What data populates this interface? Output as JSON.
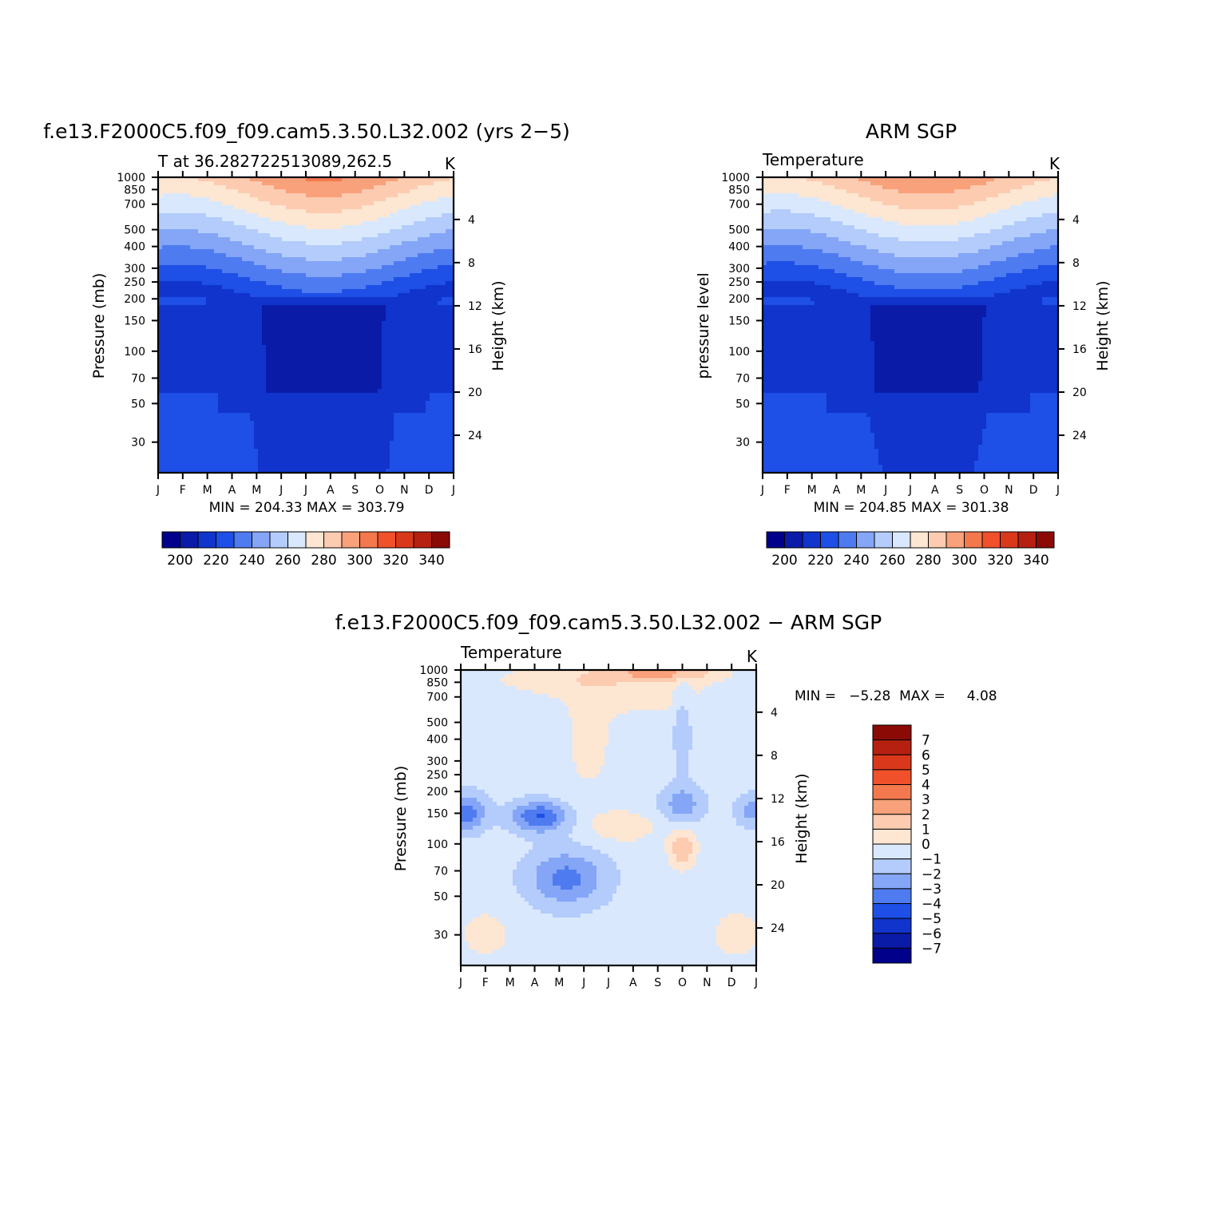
{
  "chart_data": [
    {
      "type": "contour",
      "title": "f.e13.F2000C5.f09_f09.cam5.3.50.L32.002 (yrs 2−5)",
      "subtitle_left": "T at 36.282722513089,262.5",
      "subtitle_right": "K",
      "ylabel": "Pressure (mb)",
      "ylabel_right": "Height (km)",
      "minmax_text": "MIN = 204.33 MAX = 303.79",
      "min": 204.33,
      "max": 303.79,
      "months": [
        "J",
        "F",
        "M",
        "A",
        "M",
        "J",
        "J",
        "A",
        "S",
        "O",
        "N",
        "D",
        "J"
      ],
      "pressure_ticks": [
        "30",
        "50",
        "70",
        "100",
        "150",
        "200",
        "250",
        "300",
        "400",
        "500",
        "700",
        "850",
        "1000"
      ],
      "pressure_values": [
        30,
        50,
        70,
        100,
        150,
        200,
        250,
        300,
        400,
        500,
        700,
        850,
        1000
      ],
      "height_ticks": [
        "24",
        "20",
        "16",
        "12",
        "8",
        "4"
      ],
      "height_values": [
        24,
        20,
        16,
        12,
        8,
        4
      ],
      "levels": [
        200,
        210,
        220,
        230,
        240,
        250,
        260,
        270,
        280,
        290,
        300,
        310,
        320,
        330,
        340
      ],
      "colorbar_labels": [
        "200",
        "220",
        "240",
        "260",
        "280",
        "300",
        "320",
        "340"
      ],
      "ylim": [
        1000,
        20
      ]
    },
    {
      "type": "contour",
      "title": "ARM SGP",
      "subtitle_left": "Temperature",
      "subtitle_right": "K",
      "ylabel": "pressure level",
      "ylabel_right": "Height (km)",
      "minmax_text": "MIN = 204.85 MAX = 301.38",
      "min": 204.85,
      "max": 301.38,
      "months": [
        "J",
        "F",
        "M",
        "A",
        "M",
        "J",
        "J",
        "A",
        "S",
        "O",
        "N",
        "D",
        "J"
      ],
      "pressure_ticks": [
        "30",
        "50",
        "70",
        "100",
        "150",
        "200",
        "250",
        "300",
        "400",
        "500",
        "700",
        "850",
        "1000"
      ],
      "pressure_values": [
        30,
        50,
        70,
        100,
        150,
        200,
        250,
        300,
        400,
        500,
        700,
        850,
        1000
      ],
      "height_ticks": [
        "24",
        "20",
        "16",
        "12",
        "8",
        "4"
      ],
      "height_values": [
        24,
        20,
        16,
        12,
        8,
        4
      ],
      "levels": [
        200,
        210,
        220,
        230,
        240,
        250,
        260,
        270,
        280,
        290,
        300,
        310,
        320,
        330,
        340
      ],
      "colorbar_labels": [
        "200",
        "220",
        "240",
        "260",
        "280",
        "300",
        "320",
        "340"
      ],
      "ylim": [
        1000,
        20
      ]
    },
    {
      "type": "contour",
      "title": "f.e13.F2000C5.f09_f09.cam5.3.50.L32.002 − ARM SGP",
      "subtitle_left": "Temperature",
      "subtitle_right": "K",
      "ylabel": "Pressure (mb)",
      "ylabel_right": "Height (km)",
      "minmax_text": "MIN =   −5.28  MAX =     4.08",
      "min": -5.28,
      "max": 4.08,
      "months": [
        "J",
        "F",
        "M",
        "A",
        "M",
        "J",
        "J",
        "A",
        "S",
        "O",
        "N",
        "D",
        "J"
      ],
      "pressure_ticks": [
        "30",
        "50",
        "70",
        "100",
        "150",
        "200",
        "250",
        "300",
        "400",
        "500",
        "700",
        "850",
        "1000"
      ],
      "pressure_values": [
        30,
        50,
        70,
        100,
        150,
        200,
        250,
        300,
        400,
        500,
        700,
        850,
        1000
      ],
      "height_ticks": [
        "24",
        "20",
        "16",
        "12",
        "8",
        "4"
      ],
      "height_values": [
        24,
        20,
        16,
        12,
        8,
        4
      ],
      "levels": [
        -7,
        -6,
        -5,
        -4,
        -3,
        -2,
        -1,
        0,
        1,
        2,
        3,
        4,
        5,
        6,
        7
      ],
      "colorbar_labels": [
        "7",
        "6",
        "5",
        "4",
        "3",
        "2",
        "1",
        "0",
        "−1",
        "−2",
        "−3",
        "−4",
        "−5",
        "−6",
        "−7"
      ],
      "ylim": [
        1000,
        20
      ]
    }
  ],
  "colors": {
    "scale16": [
      "#00008b",
      "#0a1ba8",
      "#1034cc",
      "#1e4fe6",
      "#4f7bf0",
      "#85a6f7",
      "#b3ccfb",
      "#d9e8fd",
      "#fde6d2",
      "#fccbb0",
      "#f8a17a",
      "#f4784d",
      "#f0502a",
      "#d9381a",
      "#b52010",
      "#8b0a06"
    ]
  }
}
